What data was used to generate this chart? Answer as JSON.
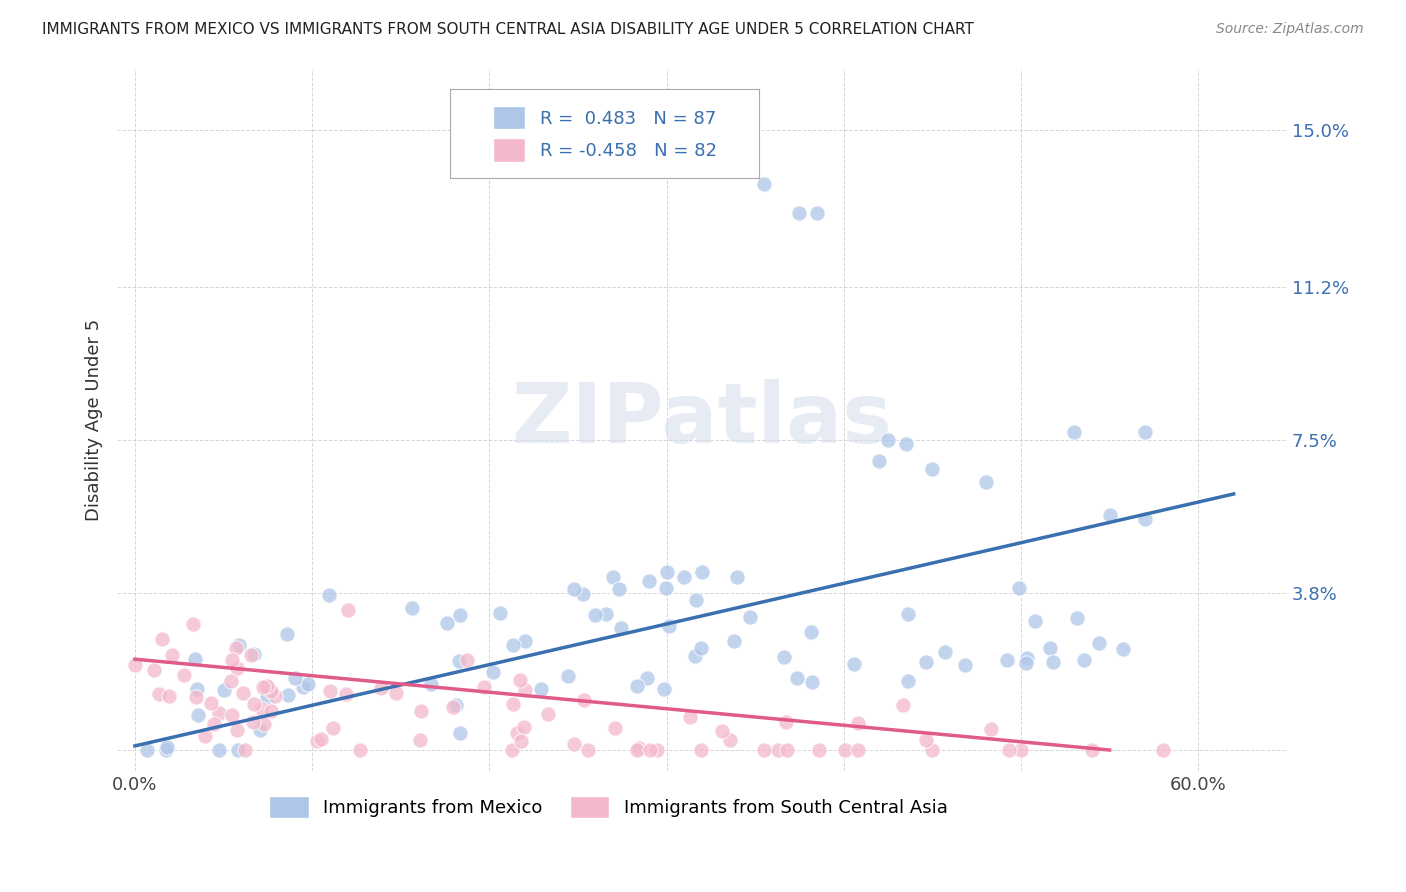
{
  "title": "IMMIGRANTS FROM MEXICO VS IMMIGRANTS FROM SOUTH CENTRAL ASIA DISABILITY AGE UNDER 5 CORRELATION CHART",
  "source": "Source: ZipAtlas.com",
  "ylabel": "Disability Age Under 5",
  "ytick_vals": [
    0.0,
    0.038,
    0.075,
    0.112,
    0.15
  ],
  "ytick_labels": [
    "",
    "3.8%",
    "7.5%",
    "11.2%",
    "15.0%"
  ],
  "xtick_vals": [
    0.0,
    0.1,
    0.2,
    0.3,
    0.4,
    0.5,
    0.6
  ],
  "xtick_labels": [
    "0.0%",
    "",
    "",
    "",
    "",
    "",
    "60.0%"
  ],
  "xlim": [
    -0.01,
    0.65
  ],
  "ylim": [
    -0.005,
    0.165
  ],
  "legend1_label": "R =  0.483   N = 87",
  "legend2_label": "R = -0.458   N = 82",
  "color_mexico": "#aec6e8",
  "color_asia": "#f4b8cb",
  "color_line_mexico": "#3a6fb0",
  "color_line_asia": "#e05a8a",
  "watermark": "ZIPatlas",
  "mexico_r": 0.483,
  "mexico_n": 87,
  "asia_r": -0.458,
  "asia_n": 82,
  "line_mexico_x0": 0.0,
  "line_mexico_y0": 0.001,
  "line_mexico_x1": 0.62,
  "line_mexico_y1": 0.062,
  "line_asia_x0": 0.0,
  "line_asia_y0": 0.022,
  "line_asia_x1": 0.55,
  "line_asia_y1": 0.0
}
